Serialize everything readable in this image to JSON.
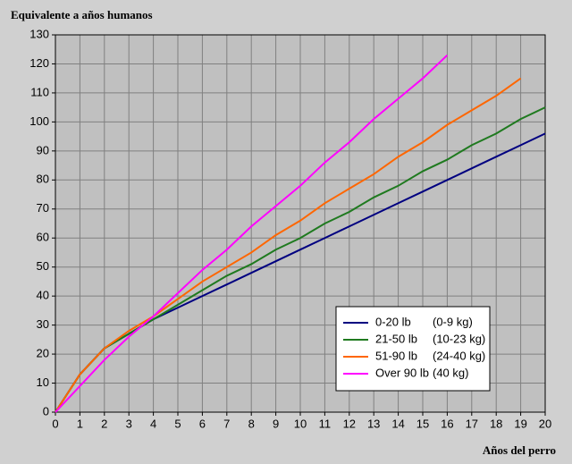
{
  "chart_data": {
    "type": "line",
    "title": "Equivalente a años humanos",
    "x_label": "Años del perro",
    "x": [
      0,
      1,
      2,
      3,
      4,
      5,
      6,
      7,
      8,
      9,
      10,
      11,
      12,
      13,
      14,
      15,
      16,
      17,
      18,
      19,
      20
    ],
    "xlim": [
      0,
      20
    ],
    "xticks": [
      0,
      1,
      2,
      3,
      4,
      5,
      6,
      7,
      8,
      9,
      10,
      11,
      12,
      13,
      14,
      15,
      16,
      17,
      18,
      19,
      20
    ],
    "ylim": [
      0,
      130
    ],
    "yticks": [
      0,
      10,
      20,
      30,
      40,
      50,
      60,
      70,
      80,
      90,
      100,
      110,
      120,
      130
    ],
    "grid": true,
    "legend": "lower-right",
    "series": [
      {
        "name": "0-20 lb",
        "weight_kg": "(0-9 kg)",
        "color": "#000080",
        "values": [
          0,
          13,
          22,
          27,
          32,
          36,
          40,
          44,
          48,
          52,
          56,
          60,
          64,
          68,
          72,
          76,
          80,
          84,
          88,
          92,
          96
        ]
      },
      {
        "name": "21-50 lb",
        "weight_kg": "(10-23 kg)",
        "color": "#1f7a1f",
        "values": [
          0,
          13,
          22,
          27,
          32,
          37,
          42,
          47,
          51,
          56,
          60,
          65,
          69,
          74,
          78,
          83,
          87,
          92,
          96,
          101,
          105
        ]
      },
      {
        "name": "51-90 lb",
        "weight_kg": "(24-40 kg)",
        "color": "#ff6600",
        "values": [
          0,
          13,
          22,
          28,
          33,
          39,
          45,
          50,
          55,
          61,
          66,
          72,
          77,
          82,
          88,
          93,
          99,
          104,
          109,
          115,
          null
        ]
      },
      {
        "name": "Over 90 lb",
        "weight_kg": "(40 kg)",
        "color": "#ff00ff",
        "values": [
          0,
          9,
          18,
          26,
          33,
          41,
          49,
          56,
          64,
          71,
          78,
          86,
          93,
          101,
          108,
          115,
          123,
          null,
          null,
          null,
          null
        ]
      }
    ]
  }
}
